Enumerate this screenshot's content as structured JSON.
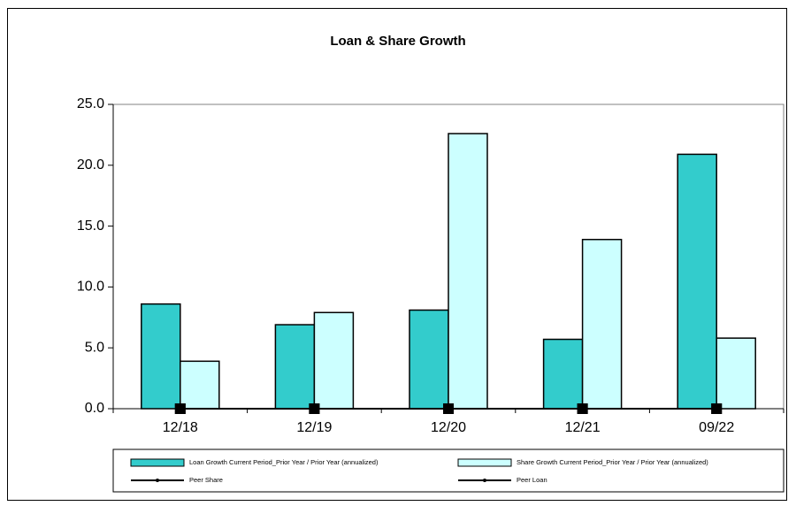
{
  "chart_data": {
    "type": "bar",
    "title": "Loan & Share Growth",
    "categories": [
      "12/18",
      "12/19",
      "12/20",
      "12/21",
      "09/22"
    ],
    "series": [
      {
        "name": "Loan Growth Current Period_Prior Year / Prior Year (annualized)",
        "color": "#33cccc",
        "type": "bar",
        "values": [
          8.6,
          6.9,
          8.1,
          5.7,
          20.9
        ]
      },
      {
        "name": "Share Growth Current Period_Prior Year / Prior Year (annualized)",
        "color": "#ccffff",
        "type": "bar",
        "values": [
          3.9,
          7.9,
          22.6,
          13.9,
          5.8
        ]
      },
      {
        "name": "Peer Share",
        "color": "#000000",
        "type": "line",
        "values": [
          0,
          0,
          0,
          0,
          0
        ]
      },
      {
        "name": "Peer Loan",
        "color": "#000000",
        "type": "line",
        "values": [
          0,
          0,
          0,
          0,
          0
        ]
      }
    ],
    "ylim": [
      0,
      25
    ],
    "yticks": [
      {
        "value": 0,
        "label": "0.0"
      },
      {
        "value": 5,
        "label": "5.0"
      },
      {
        "value": 10,
        "label": "10.0"
      },
      {
        "value": 15,
        "label": "15.0"
      },
      {
        "value": 20,
        "label": "20.0"
      },
      {
        "value": 25,
        "label": "25.0"
      }
    ],
    "grid": false
  }
}
